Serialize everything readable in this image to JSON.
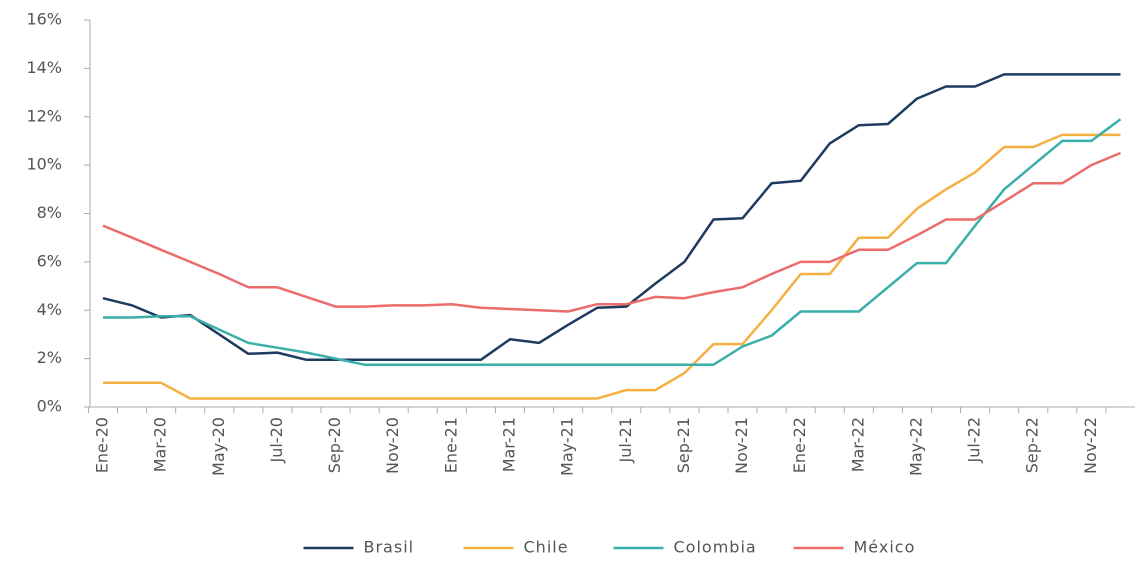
{
  "chart_data": {
    "type": "line",
    "categories": [
      "Ene-20",
      null,
      "Mar-20",
      null,
      "May-20",
      null,
      "Jul-20",
      null,
      "Sep-20",
      null,
      "Nov-20",
      null,
      "Ene-21",
      null,
      "Mar-21",
      null,
      "May-21",
      null,
      "Jul-21",
      null,
      "Sep-21",
      null,
      "Nov-21",
      null,
      "Ene-22",
      null,
      "Mar-22",
      null,
      "May-22",
      null,
      "Jul-22",
      null,
      "Sep-22",
      null,
      "Nov-22",
      null
    ],
    "series": [
      {
        "name": "Brasil",
        "color": "#1f3a5f",
        "values": [
          4.5,
          4.2,
          3.7,
          3.8,
          3.0,
          2.2,
          2.25,
          1.95,
          1.95,
          1.95,
          1.95,
          1.95,
          1.95,
          1.95,
          2.8,
          2.65,
          3.4,
          4.1,
          4.15,
          5.1,
          6.0,
          7.75,
          7.8,
          9.25,
          9.35,
          10.9,
          11.65,
          11.7,
          12.75,
          13.25,
          13.25,
          13.75,
          13.75,
          13.75,
          13.75,
          13.75
        ]
      },
      {
        "name": "Chile",
        "color": "#f5b042",
        "values": [
          1.0,
          1.0,
          1.0,
          0.35,
          0.35,
          0.35,
          0.35,
          0.35,
          0.35,
          0.35,
          0.35,
          0.35,
          0.35,
          0.35,
          0.35,
          0.35,
          0.35,
          0.35,
          0.7,
          0.7,
          1.4,
          2.6,
          2.6,
          4.0,
          5.5,
          5.5,
          7.0,
          7.0,
          8.2,
          9.0,
          9.7,
          10.75,
          10.75,
          11.25,
          11.25,
          11.25
        ]
      },
      {
        "name": "Colombia",
        "color": "#3aafa9",
        "values": [
          3.7,
          3.7,
          3.75,
          3.75,
          3.2,
          2.65,
          2.45,
          2.25,
          2.0,
          1.75,
          1.75,
          1.75,
          1.75,
          1.75,
          1.75,
          1.75,
          1.75,
          1.75,
          1.75,
          1.75,
          1.75,
          1.75,
          2.5,
          2.95,
          3.95,
          3.95,
          3.95,
          4.95,
          5.95,
          5.95,
          7.5,
          9.0,
          10.0,
          11.0,
          11.0,
          11.9
        ]
      },
      {
        "name": "México",
        "color": "#ec6b6b",
        "values": [
          7.5,
          7.0,
          6.5,
          6.0,
          5.5,
          4.95,
          4.95,
          4.55,
          4.15,
          4.15,
          4.2,
          4.2,
          4.25,
          4.1,
          4.05,
          4.0,
          3.95,
          4.25,
          4.25,
          4.55,
          4.5,
          4.75,
          4.95,
          5.5,
          6.0,
          6.0,
          6.5,
          6.5,
          7.1,
          7.75,
          7.75,
          8.5,
          9.25,
          9.25,
          10.0,
          10.5
        ]
      }
    ],
    "ylim": [
      0,
      16
    ],
    "yticks": [
      {
        "value": 0,
        "label": "0%"
      },
      {
        "value": 2,
        "label": "2%"
      },
      {
        "value": 4,
        "label": "4%"
      },
      {
        "value": 6,
        "label": "6%"
      },
      {
        "value": 8,
        "label": "8%"
      },
      {
        "value": 10,
        "label": "10%"
      },
      {
        "value": 12,
        "label": "12%"
      },
      {
        "value": 14,
        "label": "14%"
      },
      {
        "value": 16,
        "label": "16%"
      }
    ],
    "grid": false,
    "legend": "bottom"
  }
}
